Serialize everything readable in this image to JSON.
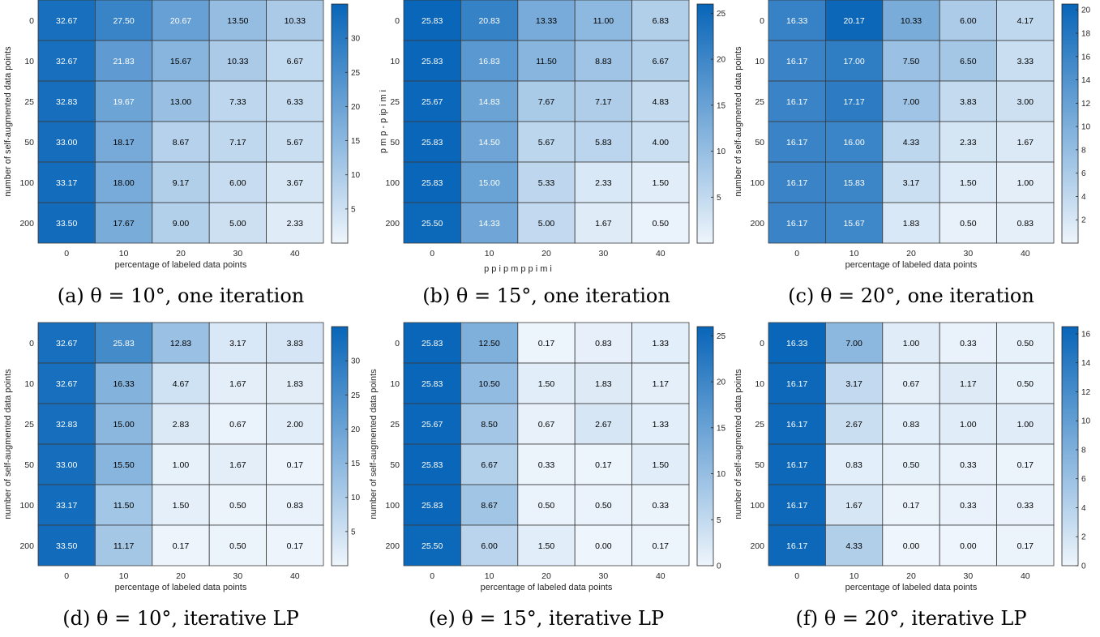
{
  "chart_data": [
    {
      "type": "heatmap",
      "caption": "(a) θ = 10°, one iteration",
      "xlabel": "percentage of labeled data points",
      "ylabel": "number of self-augmented data points",
      "x": [
        "0",
        "10",
        "20",
        "30",
        "40"
      ],
      "y": [
        "0",
        "10",
        "25",
        "50",
        "100",
        "200"
      ],
      "values": [
        [
          32.67,
          27.5,
          20.67,
          13.5,
          10.33
        ],
        [
          32.67,
          21.83,
          15.67,
          10.33,
          6.67
        ],
        [
          32.83,
          19.67,
          13.0,
          7.33,
          6.33
        ],
        [
          33.0,
          18.17,
          8.67,
          7.17,
          5.67
        ],
        [
          33.17,
          18.0,
          9.17,
          6.0,
          3.67
        ],
        [
          33.5,
          17.67,
          9.0,
          5.0,
          2.33
        ]
      ],
      "clim": [
        0,
        35
      ],
      "colorbar_ticks": [
        5,
        10,
        15,
        20,
        25,
        30
      ]
    },
    {
      "type": "heatmap",
      "caption": "(b) θ = 15°, one iteration",
      "xlabel": "p p i   p m   p p     i   m i",
      "ylabel": "p m p -       p ip     i   m i",
      "x": [
        "0",
        "10",
        "20",
        "30",
        "40"
      ],
      "y": [
        "0",
        "10",
        "25",
        "50",
        "100",
        "200"
      ],
      "values": [
        [
          25.83,
          20.83,
          13.33,
          11.0,
          6.83
        ],
        [
          25.83,
          16.83,
          11.5,
          8.83,
          6.67
        ],
        [
          25.67,
          14.83,
          7.67,
          7.17,
          4.83
        ],
        [
          25.83,
          14.5,
          5.67,
          5.83,
          4.0
        ],
        [
          25.83,
          15.0,
          5.33,
          2.33,
          1.5
        ],
        [
          25.5,
          14.33,
          5.0,
          1.67,
          0.5
        ]
      ],
      "clim": [
        0,
        26
      ],
      "colorbar_ticks": [
        5,
        10,
        15,
        20,
        25
      ]
    },
    {
      "type": "heatmap",
      "caption": "(c) θ = 20°, one iteration",
      "xlabel": "percentage of labeled data points",
      "ylabel": "number of self-augmented data points",
      "x": [
        "0",
        "10",
        "20",
        "30",
        "40"
      ],
      "y": [
        "0",
        "10",
        "25",
        "50",
        "100",
        "200"
      ],
      "values": [
        [
          16.33,
          20.17,
          10.33,
          6.0,
          4.17
        ],
        [
          16.17,
          17.0,
          7.5,
          6.5,
          3.33
        ],
        [
          16.17,
          17.17,
          7.0,
          3.83,
          3.0
        ],
        [
          16.17,
          16.0,
          4.33,
          2.33,
          1.67
        ],
        [
          16.17,
          15.83,
          3.17,
          1.5,
          1.0
        ],
        [
          16.17,
          15.67,
          1.83,
          0.5,
          0.83
        ]
      ],
      "clim": [
        0,
        20.5
      ],
      "colorbar_ticks": [
        2,
        4,
        6,
        8,
        10,
        12,
        14,
        16,
        18,
        20
      ]
    },
    {
      "type": "heatmap",
      "caption": "(d) θ = 10°, iterative LP",
      "xlabel": "percentage of labeled data points",
      "ylabel": "number of self-augmented data points",
      "x": [
        "0",
        "10",
        "20",
        "30",
        "40"
      ],
      "y": [
        "0",
        "10",
        "25",
        "50",
        "100",
        "200"
      ],
      "values": [
        [
          32.67,
          25.83,
          12.83,
          3.17,
          3.83
        ],
        [
          32.67,
          16.33,
          4.67,
          1.67,
          1.83
        ],
        [
          32.83,
          15.0,
          2.83,
          0.67,
          2.0
        ],
        [
          33.0,
          15.5,
          1.0,
          1.67,
          0.17
        ],
        [
          33.17,
          11.5,
          1.5,
          0.5,
          0.83
        ],
        [
          33.5,
          11.17,
          0.17,
          0.5,
          0.17
        ]
      ],
      "clim": [
        0,
        35
      ],
      "colorbar_ticks": [
        5,
        10,
        15,
        20,
        25,
        30
      ]
    },
    {
      "type": "heatmap",
      "caption": "(e) θ = 15°, iterative LP",
      "xlabel": "percentage of labeled data points",
      "ylabel": "number of self-augmented data points",
      "x": [
        "0",
        "10",
        "20",
        "30",
        "40"
      ],
      "y": [
        "0",
        "10",
        "25",
        "50",
        "100",
        "200"
      ],
      "values": [
        [
          25.83,
          12.5,
          0.17,
          0.83,
          1.33
        ],
        [
          25.83,
          10.5,
          1.5,
          1.83,
          1.17
        ],
        [
          25.67,
          8.5,
          0.67,
          2.67,
          1.33
        ],
        [
          25.83,
          6.67,
          0.33,
          0.17,
          1.5
        ],
        [
          25.83,
          8.67,
          0.5,
          0.5,
          0.33
        ],
        [
          25.5,
          6.0,
          1.5,
          0.0,
          0.17
        ]
      ],
      "clim": [
        0,
        26
      ],
      "colorbar_ticks": [
        0,
        5,
        10,
        15,
        20,
        25
      ]
    },
    {
      "type": "heatmap",
      "caption": "(f) θ = 20°, iterative LP",
      "xlabel": "percentage of labeled data points",
      "ylabel": "number of self-augmented data points",
      "x": [
        "0",
        "10",
        "20",
        "30",
        "40"
      ],
      "y": [
        "0",
        "10",
        "25",
        "50",
        "100",
        "200"
      ],
      "values": [
        [
          16.33,
          7.0,
          1.0,
          0.33,
          0.5
        ],
        [
          16.17,
          3.17,
          0.67,
          1.17,
          0.5
        ],
        [
          16.17,
          2.67,
          0.83,
          1.0,
          1.0
        ],
        [
          16.17,
          0.83,
          0.5,
          0.33,
          0.17
        ],
        [
          16.17,
          1.67,
          0.17,
          0.33,
          0.33
        ],
        [
          16.17,
          4.33,
          0.0,
          0.0,
          0.17
        ]
      ],
      "clim": [
        0,
        16.5
      ],
      "colorbar_ticks": [
        0,
        2,
        4,
        6,
        8,
        10,
        12,
        14,
        16
      ]
    }
  ],
  "colors": {
    "low": "#eef5fc",
    "high": "#0865b8",
    "grid": "#3a3a3a"
  }
}
